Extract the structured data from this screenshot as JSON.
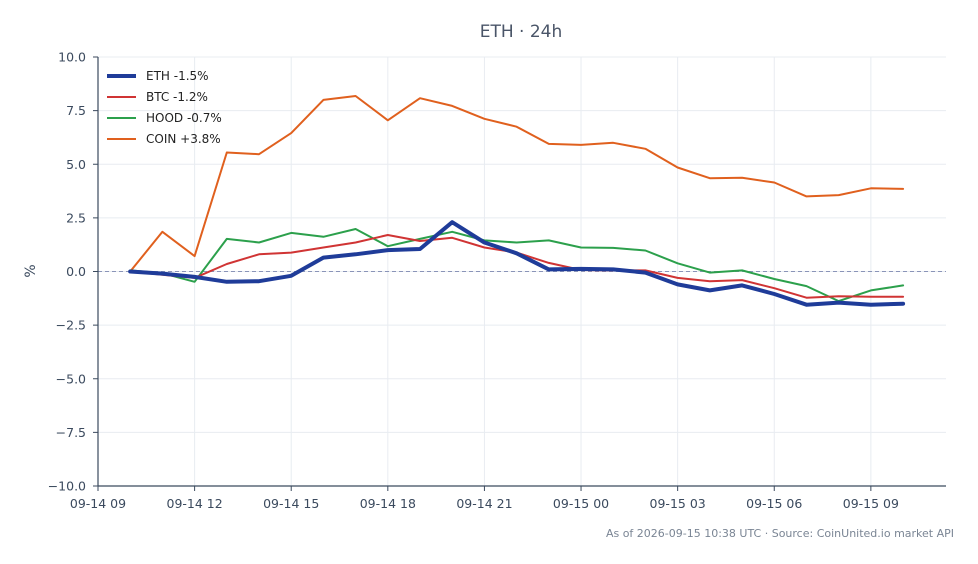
{
  "chart_data": {
    "type": "line",
    "title": "ETH · 24h",
    "xlabel": "",
    "ylabel": "%",
    "ylim": [
      -10,
      10
    ],
    "yticks": [
      -10.0,
      -7.5,
      -5.0,
      -2.5,
      0.0,
      2.5,
      5.0,
      7.5,
      10.0
    ],
    "ytick_labels": [
      "−10.0",
      "−7.5",
      "−5.0",
      "−2.5",
      "0.0",
      "2.5",
      "5.0",
      "7.5",
      "10.0"
    ],
    "xlim": [
      "2026-09-14 09:00",
      "2026-09-15 11:20"
    ],
    "xtick_labels": [
      "09-14 09",
      "09-14 12",
      "09-14 15",
      "09-14 18",
      "09-14 21",
      "09-15 00",
      "09-15 03",
      "09-15 06",
      "09-15 09"
    ],
    "x": [
      "2026-09-14 10:00",
      "2026-09-14 11:00",
      "2026-09-14 12:00",
      "2026-09-14 13:00",
      "2026-09-14 14:00",
      "2026-09-14 15:00",
      "2026-09-14 16:00",
      "2026-09-14 17:00",
      "2026-09-14 18:00",
      "2026-09-14 19:00",
      "2026-09-14 20:00",
      "2026-09-14 21:00",
      "2026-09-14 22:00",
      "2026-09-14 23:00",
      "2026-09-15 00:00",
      "2026-09-15 01:00",
      "2026-09-15 02:00",
      "2026-09-15 03:00",
      "2026-09-15 04:00",
      "2026-09-15 05:00",
      "2026-09-15 06:00",
      "2026-09-15 07:00",
      "2026-09-15 08:00",
      "2026-09-15 09:00",
      "2026-09-15 10:00"
    ],
    "zero_line": true,
    "grid": true,
    "legend_position": "top-left",
    "series": [
      {
        "name": "ETH -1.5%",
        "color": "#1f3c99",
        "width": 4,
        "values": [
          0.0,
          -0.1,
          -0.25,
          -0.48,
          -0.45,
          -0.2,
          0.65,
          0.8,
          1.0,
          1.05,
          2.3,
          1.35,
          0.85,
          0.1,
          0.12,
          0.1,
          -0.05,
          -0.6,
          -0.88,
          -0.65,
          -1.05,
          -1.55,
          -1.45,
          -1.55,
          -1.5
        ]
      },
      {
        "name": "BTC -1.2%",
        "color": "#d03434",
        "width": 2,
        "values": [
          0.0,
          -0.15,
          -0.3,
          0.35,
          0.8,
          0.88,
          1.12,
          1.35,
          1.7,
          1.42,
          1.57,
          1.12,
          0.88,
          0.4,
          0.07,
          0.05,
          0.05,
          -0.3,
          -0.45,
          -0.4,
          -0.78,
          -1.22,
          -1.15,
          -1.18,
          -1.18
        ]
      },
      {
        "name": "HOOD -0.7%",
        "color": "#2ca04c",
        "width": 2,
        "values": [
          0.05,
          -0.08,
          -0.48,
          1.52,
          1.35,
          1.8,
          1.62,
          1.98,
          1.18,
          1.52,
          1.85,
          1.45,
          1.35,
          1.45,
          1.12,
          1.1,
          0.98,
          0.38,
          -0.05,
          0.05,
          -0.35,
          -0.68,
          -1.38,
          -0.88,
          -0.65
        ]
      },
      {
        "name": "COIN +3.8%",
        "color": "#e0601e",
        "width": 2,
        "values": [
          0.0,
          1.85,
          0.72,
          5.55,
          5.47,
          6.45,
          8.0,
          8.18,
          7.05,
          8.08,
          7.72,
          7.12,
          6.75,
          5.95,
          5.9,
          6.0,
          5.72,
          4.85,
          4.35,
          4.37,
          4.15,
          3.5,
          3.56,
          3.88,
          3.85
        ]
      }
    ],
    "annotation": "As of 2026-09-15 10:38 UTC · Source: CoinUnited.io market API"
  }
}
